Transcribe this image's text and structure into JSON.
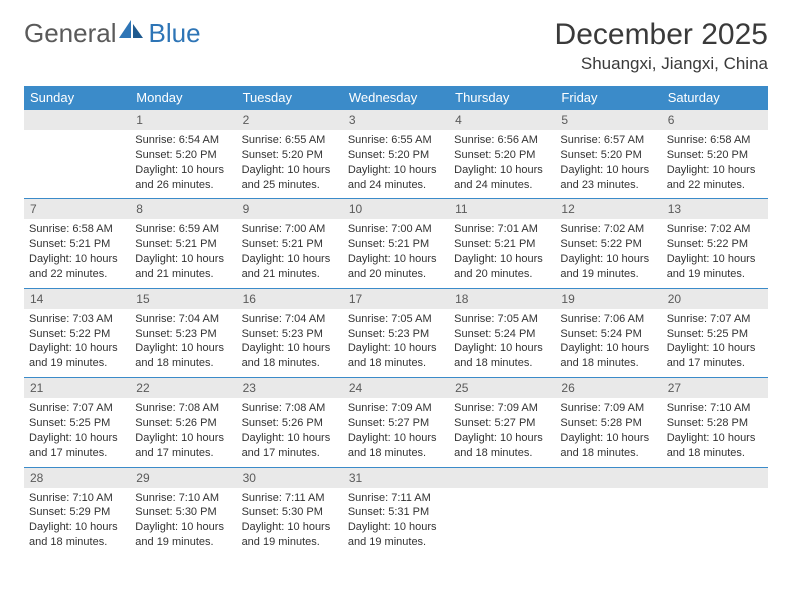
{
  "brand": {
    "name_part1": "General",
    "name_part2": "Blue"
  },
  "title": "December 2025",
  "location": "Shuangxi, Jiangxi, China",
  "colors": {
    "header_bg": "#3b8bc9",
    "header_fg": "#ffffff",
    "daynum_bg": "#e9e9e9",
    "daynum_fg": "#5a5a5a",
    "border": "#3b8bc9",
    "logo_gray": "#5a5a5a",
    "logo_blue": "#2e75b6"
  },
  "day_headers": [
    "Sunday",
    "Monday",
    "Tuesday",
    "Wednesday",
    "Thursday",
    "Friday",
    "Saturday"
  ],
  "weeks": [
    [
      {
        "n": "",
        "lines": []
      },
      {
        "n": "1",
        "lines": [
          "Sunrise: 6:54 AM",
          "Sunset: 5:20 PM",
          "Daylight: 10 hours",
          "and 26 minutes."
        ]
      },
      {
        "n": "2",
        "lines": [
          "Sunrise: 6:55 AM",
          "Sunset: 5:20 PM",
          "Daylight: 10 hours",
          "and 25 minutes."
        ]
      },
      {
        "n": "3",
        "lines": [
          "Sunrise: 6:55 AM",
          "Sunset: 5:20 PM",
          "Daylight: 10 hours",
          "and 24 minutes."
        ]
      },
      {
        "n": "4",
        "lines": [
          "Sunrise: 6:56 AM",
          "Sunset: 5:20 PM",
          "Daylight: 10 hours",
          "and 24 minutes."
        ]
      },
      {
        "n": "5",
        "lines": [
          "Sunrise: 6:57 AM",
          "Sunset: 5:20 PM",
          "Daylight: 10 hours",
          "and 23 minutes."
        ]
      },
      {
        "n": "6",
        "lines": [
          "Sunrise: 6:58 AM",
          "Sunset: 5:20 PM",
          "Daylight: 10 hours",
          "and 22 minutes."
        ]
      }
    ],
    [
      {
        "n": "7",
        "lines": [
          "Sunrise: 6:58 AM",
          "Sunset: 5:21 PM",
          "Daylight: 10 hours",
          "and 22 minutes."
        ]
      },
      {
        "n": "8",
        "lines": [
          "Sunrise: 6:59 AM",
          "Sunset: 5:21 PM",
          "Daylight: 10 hours",
          "and 21 minutes."
        ]
      },
      {
        "n": "9",
        "lines": [
          "Sunrise: 7:00 AM",
          "Sunset: 5:21 PM",
          "Daylight: 10 hours",
          "and 21 minutes."
        ]
      },
      {
        "n": "10",
        "lines": [
          "Sunrise: 7:00 AM",
          "Sunset: 5:21 PM",
          "Daylight: 10 hours",
          "and 20 minutes."
        ]
      },
      {
        "n": "11",
        "lines": [
          "Sunrise: 7:01 AM",
          "Sunset: 5:21 PM",
          "Daylight: 10 hours",
          "and 20 minutes."
        ]
      },
      {
        "n": "12",
        "lines": [
          "Sunrise: 7:02 AM",
          "Sunset: 5:22 PM",
          "Daylight: 10 hours",
          "and 19 minutes."
        ]
      },
      {
        "n": "13",
        "lines": [
          "Sunrise: 7:02 AM",
          "Sunset: 5:22 PM",
          "Daylight: 10 hours",
          "and 19 minutes."
        ]
      }
    ],
    [
      {
        "n": "14",
        "lines": [
          "Sunrise: 7:03 AM",
          "Sunset: 5:22 PM",
          "Daylight: 10 hours",
          "and 19 minutes."
        ]
      },
      {
        "n": "15",
        "lines": [
          "Sunrise: 7:04 AM",
          "Sunset: 5:23 PM",
          "Daylight: 10 hours",
          "and 18 minutes."
        ]
      },
      {
        "n": "16",
        "lines": [
          "Sunrise: 7:04 AM",
          "Sunset: 5:23 PM",
          "Daylight: 10 hours",
          "and 18 minutes."
        ]
      },
      {
        "n": "17",
        "lines": [
          "Sunrise: 7:05 AM",
          "Sunset: 5:23 PM",
          "Daylight: 10 hours",
          "and 18 minutes."
        ]
      },
      {
        "n": "18",
        "lines": [
          "Sunrise: 7:05 AM",
          "Sunset: 5:24 PM",
          "Daylight: 10 hours",
          "and 18 minutes."
        ]
      },
      {
        "n": "19",
        "lines": [
          "Sunrise: 7:06 AM",
          "Sunset: 5:24 PM",
          "Daylight: 10 hours",
          "and 18 minutes."
        ]
      },
      {
        "n": "20",
        "lines": [
          "Sunrise: 7:07 AM",
          "Sunset: 5:25 PM",
          "Daylight: 10 hours",
          "and 17 minutes."
        ]
      }
    ],
    [
      {
        "n": "21",
        "lines": [
          "Sunrise: 7:07 AM",
          "Sunset: 5:25 PM",
          "Daylight: 10 hours",
          "and 17 minutes."
        ]
      },
      {
        "n": "22",
        "lines": [
          "Sunrise: 7:08 AM",
          "Sunset: 5:26 PM",
          "Daylight: 10 hours",
          "and 17 minutes."
        ]
      },
      {
        "n": "23",
        "lines": [
          "Sunrise: 7:08 AM",
          "Sunset: 5:26 PM",
          "Daylight: 10 hours",
          "and 17 minutes."
        ]
      },
      {
        "n": "24",
        "lines": [
          "Sunrise: 7:09 AM",
          "Sunset: 5:27 PM",
          "Daylight: 10 hours",
          "and 18 minutes."
        ]
      },
      {
        "n": "25",
        "lines": [
          "Sunrise: 7:09 AM",
          "Sunset: 5:27 PM",
          "Daylight: 10 hours",
          "and 18 minutes."
        ]
      },
      {
        "n": "26",
        "lines": [
          "Sunrise: 7:09 AM",
          "Sunset: 5:28 PM",
          "Daylight: 10 hours",
          "and 18 minutes."
        ]
      },
      {
        "n": "27",
        "lines": [
          "Sunrise: 7:10 AM",
          "Sunset: 5:28 PM",
          "Daylight: 10 hours",
          "and 18 minutes."
        ]
      }
    ],
    [
      {
        "n": "28",
        "lines": [
          "Sunrise: 7:10 AM",
          "Sunset: 5:29 PM",
          "Daylight: 10 hours",
          "and 18 minutes."
        ]
      },
      {
        "n": "29",
        "lines": [
          "Sunrise: 7:10 AM",
          "Sunset: 5:30 PM",
          "Daylight: 10 hours",
          "and 19 minutes."
        ]
      },
      {
        "n": "30",
        "lines": [
          "Sunrise: 7:11 AM",
          "Sunset: 5:30 PM",
          "Daylight: 10 hours",
          "and 19 minutes."
        ]
      },
      {
        "n": "31",
        "lines": [
          "Sunrise: 7:11 AM",
          "Sunset: 5:31 PM",
          "Daylight: 10 hours",
          "and 19 minutes."
        ]
      },
      {
        "n": "",
        "lines": []
      },
      {
        "n": "",
        "lines": []
      },
      {
        "n": "",
        "lines": []
      }
    ]
  ]
}
